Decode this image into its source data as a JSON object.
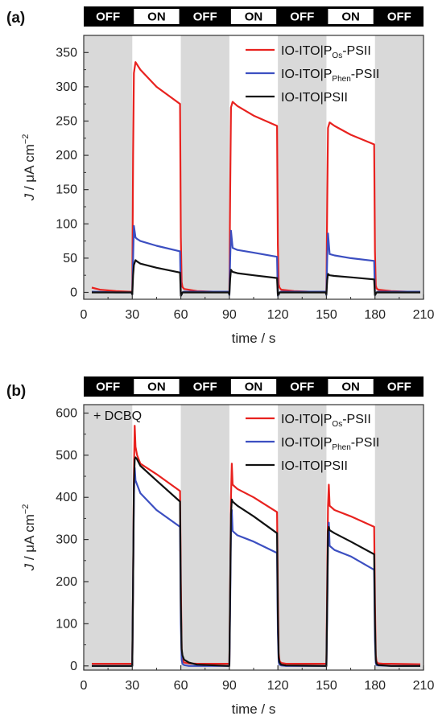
{
  "chart_data": [
    {
      "panel_label": "(a)",
      "type": "line",
      "xlabel": "time / s",
      "ylabel_main": "J",
      "ylabel_unit": " / μA cm",
      "ylabel_exp": "−2",
      "xlim": [
        0,
        210
      ],
      "ylim": [
        -10,
        375
      ],
      "xticks": [
        0,
        30,
        60,
        90,
        120,
        150,
        180,
        210
      ],
      "yticks": [
        0,
        50,
        100,
        150,
        200,
        250,
        300,
        350
      ],
      "phases": [
        {
          "label": "OFF",
          "start": 0,
          "end": 30,
          "state": "off"
        },
        {
          "label": "ON",
          "start": 30,
          "end": 60,
          "state": "on"
        },
        {
          "label": "OFF",
          "start": 60,
          "end": 90,
          "state": "off"
        },
        {
          "label": "ON",
          "start": 90,
          "end": 120,
          "state": "on"
        },
        {
          "label": "OFF",
          "start": 120,
          "end": 150,
          "state": "off"
        },
        {
          "label": "ON",
          "start": 150,
          "end": 180,
          "state": "on"
        },
        {
          "label": "OFF",
          "start": 180,
          "end": 210,
          "state": "off"
        }
      ],
      "annotation": "",
      "legend_position": "top-right",
      "series": [
        {
          "name": "IO-ITO|POs-PSII",
          "legend_pre": "IO-ITO|P",
          "legend_sub": "Os",
          "legend_post": "-PSII",
          "color": "#e8221f",
          "x": [
            5,
            10,
            20,
            28,
            30,
            30.5,
            31,
            32,
            35,
            45,
            59.5,
            60,
            60.5,
            61,
            62,
            70,
            80,
            89.5,
            90,
            90.5,
            91,
            92,
            95,
            105,
            119.5,
            120,
            120.5,
            121,
            122,
            130,
            140,
            149.5,
            150,
            150.5,
            151,
            152,
            155,
            165,
            179.5,
            180,
            180.5,
            181,
            182,
            190,
            200,
            208
          ],
          "y": [
            7,
            4,
            2,
            1,
            1,
            200,
            320,
            336,
            325,
            300,
            275,
            80,
            15,
            8,
            5,
            2,
            1,
            1,
            1,
            150,
            270,
            278,
            272,
            258,
            243,
            70,
            12,
            7,
            4,
            2,
            1,
            1,
            1,
            130,
            240,
            248,
            243,
            230,
            216,
            60,
            10,
            6,
            4,
            2,
            1,
            1
          ]
        },
        {
          "name": "IO-ITO|PPhen-PSII",
          "legend_pre": "IO-ITO|P",
          "legend_sub": "Phen",
          "legend_post": "-PSII",
          "color": "#3c4fc1",
          "x": [
            5,
            20,
            29.5,
            30,
            30.5,
            31,
            32,
            33,
            35,
            45,
            59.5,
            60,
            60.5,
            61,
            62,
            70,
            89.5,
            90,
            90.5,
            91,
            92,
            95,
            105,
            119.5,
            120,
            120.5,
            121,
            122,
            130,
            149.5,
            150,
            150.5,
            151,
            152,
            155,
            165,
            179.5,
            180,
            180.5,
            181,
            182,
            190,
            208
          ],
          "y": [
            1,
            0,
            0,
            -3,
            50,
            97,
            80,
            78,
            75,
            68,
            60,
            -5,
            -3,
            0,
            1,
            1,
            1,
            -4,
            50,
            90,
            65,
            62,
            58,
            52,
            -5,
            -3,
            0,
            1,
            1,
            1,
            -4,
            50,
            86,
            56,
            54,
            50,
            46,
            -4,
            -2,
            0,
            1,
            1,
            1
          ]
        },
        {
          "name": "IO-ITO|PSII",
          "legend_pre": "IO-ITO|PSII",
          "legend_sub": "",
          "legend_post": "",
          "color": "#111111",
          "x": [
            5,
            20,
            29.5,
            30,
            30.5,
            31,
            32,
            33,
            35,
            45,
            59.5,
            60,
            60.5,
            61,
            62,
            70,
            89.5,
            90,
            90.5,
            91,
            92,
            95,
            105,
            119.5,
            120,
            120.5,
            121,
            122,
            130,
            149.5,
            150,
            150.5,
            151,
            152,
            155,
            165,
            179.5,
            180,
            180.5,
            181,
            182,
            190,
            208
          ],
          "y": [
            0,
            0,
            0,
            -3,
            25,
            40,
            47,
            45,
            42,
            36,
            29,
            -5,
            -3,
            0,
            0,
            0,
            0,
            -3,
            20,
            33,
            30,
            28,
            25,
            21,
            -4,
            -3,
            0,
            0,
            0,
            0,
            -3,
            18,
            27,
            25,
            24,
            22,
            19,
            -4,
            -2,
            0,
            0,
            0,
            0
          ]
        }
      ]
    },
    {
      "panel_label": "(b)",
      "type": "line",
      "xlabel": "time / s",
      "ylabel_main": "J",
      "ylabel_unit": " / μA cm",
      "ylabel_exp": "−2",
      "xlim": [
        0,
        210
      ],
      "ylim": [
        -10,
        620
      ],
      "xticks": [
        0,
        30,
        60,
        90,
        120,
        150,
        180,
        210
      ],
      "yticks": [
        0,
        100,
        200,
        300,
        400,
        500,
        600
      ],
      "phases": [
        {
          "label": "OFF",
          "start": 0,
          "end": 30,
          "state": "off"
        },
        {
          "label": "ON",
          "start": 30,
          "end": 60,
          "state": "on"
        },
        {
          "label": "OFF",
          "start": 60,
          "end": 90,
          "state": "off"
        },
        {
          "label": "ON",
          "start": 90,
          "end": 120,
          "state": "on"
        },
        {
          "label": "OFF",
          "start": 120,
          "end": 150,
          "state": "off"
        },
        {
          "label": "ON",
          "start": 150,
          "end": 180,
          "state": "on"
        },
        {
          "label": "OFF",
          "start": 180,
          "end": 210,
          "state": "off"
        }
      ],
      "annotation": "+ DCBQ",
      "legend_position": "top-right",
      "series": [
        {
          "name": "IO-ITO|POs-PSII",
          "legend_pre": "IO-ITO|P",
          "legend_sub": "Os",
          "legend_post": "-PSII",
          "color": "#e8221f",
          "x": [
            5,
            29.5,
            30,
            30.5,
            31,
            31.5,
            32,
            33,
            35,
            45,
            59.5,
            60,
            60.5,
            61,
            62,
            65,
            70,
            89.5,
            90,
            90.5,
            91,
            91.5,
            92,
            95,
            105,
            119.5,
            120,
            120.5,
            121,
            122,
            125,
            130,
            149.5,
            150,
            150.5,
            151,
            151.5,
            152,
            155,
            165,
            179.5,
            180,
            180.5,
            181,
            182,
            185,
            190,
            208
          ],
          "y": [
            5,
            5,
            5,
            200,
            450,
            570,
            520,
            500,
            480,
            455,
            415,
            200,
            40,
            15,
            8,
            6,
            5,
            5,
            5,
            200,
            400,
            480,
            430,
            420,
            400,
            365,
            180,
            30,
            12,
            7,
            5,
            5,
            5,
            5,
            200,
            380,
            430,
            380,
            370,
            355,
            330,
            150,
            25,
            10,
            6,
            5,
            5,
            4
          ]
        },
        {
          "name": "IO-ITO|PPhen-PSII",
          "legend_pre": "IO-ITO|P",
          "legend_sub": "Phen",
          "legend_post": "-PSII",
          "color": "#3c4fc1",
          "x": [
            5,
            29.5,
            30,
            30.5,
            31,
            31.5,
            32,
            33,
            35,
            45,
            59.5,
            60,
            60.5,
            61,
            62,
            65,
            89.5,
            90,
            90.5,
            91,
            91.5,
            92,
            95,
            105,
            119.5,
            120,
            120.5,
            121,
            122,
            125,
            149.5,
            150,
            150.5,
            151,
            151.5,
            152,
            155,
            165,
            179.5,
            180,
            180.5,
            181,
            182,
            190,
            208
          ],
          "y": [
            0,
            0,
            0,
            200,
            400,
            470,
            440,
            430,
            410,
            370,
            330,
            100,
            15,
            5,
            2,
            0,
            0,
            0,
            150,
            330,
            370,
            320,
            310,
            295,
            268,
            80,
            10,
            3,
            1,
            0,
            0,
            0,
            130,
            300,
            340,
            285,
            275,
            260,
            228,
            60,
            8,
            2,
            1,
            0,
            0
          ]
        },
        {
          "name": "IO-ITO|PSII",
          "legend_pre": "IO-ITO|PSII",
          "legend_sub": "",
          "legend_post": "",
          "color": "#111111",
          "x": [
            5,
            29.5,
            30,
            30.5,
            31,
            31.5,
            32,
            33,
            35,
            45,
            59.5,
            60,
            60.5,
            61,
            62,
            65,
            70,
            89.5,
            90,
            90.5,
            91,
            91.5,
            92,
            95,
            105,
            119.5,
            120,
            120.5,
            121,
            122,
            125,
            149.5,
            150,
            150.5,
            151,
            151.5,
            152,
            155,
            165,
            179.5,
            180,
            180.5,
            181,
            182,
            190,
            208
          ],
          "y": [
            0,
            0,
            0,
            200,
            430,
            490,
            495,
            490,
            475,
            440,
            390,
            150,
            40,
            25,
            15,
            8,
            3,
            0,
            0,
            180,
            360,
            395,
            390,
            380,
            355,
            315,
            120,
            20,
            8,
            3,
            1,
            0,
            0,
            150,
            320,
            330,
            322,
            315,
            295,
            265,
            100,
            15,
            5,
            2,
            0,
            0
          ]
        }
      ]
    }
  ]
}
